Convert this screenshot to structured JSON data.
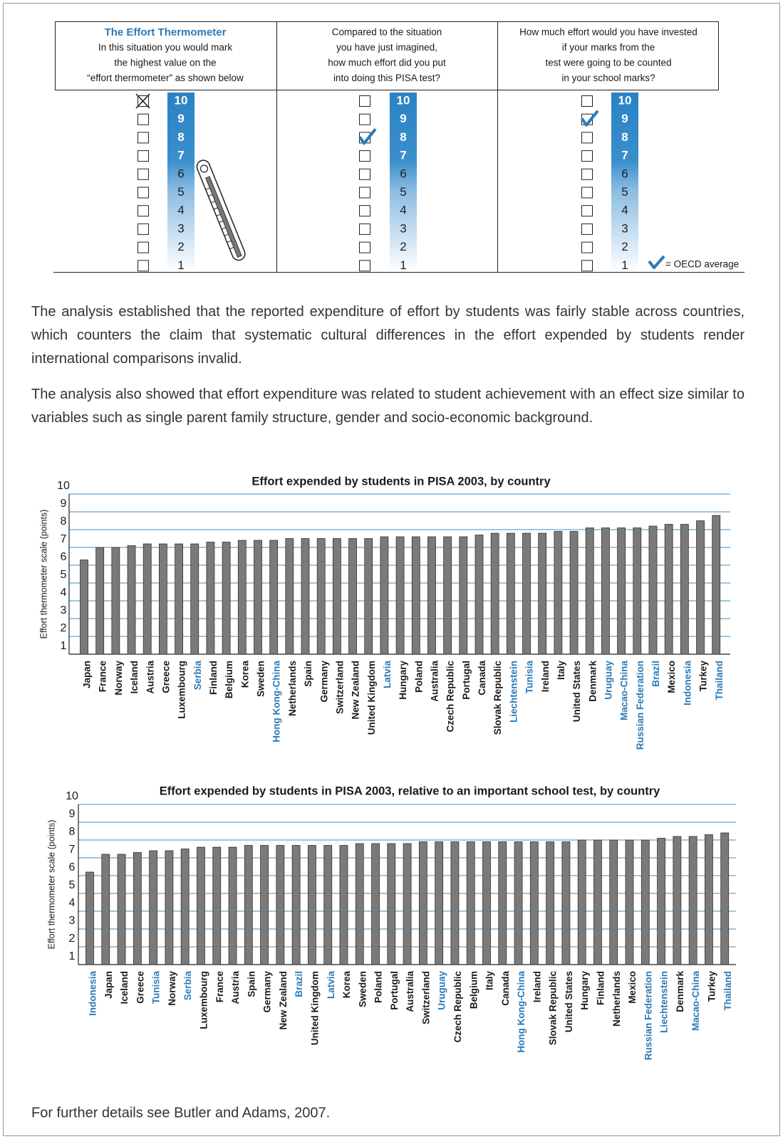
{
  "thermometer": {
    "columns": [
      {
        "title": "The Effort Thermometer",
        "lines": [
          "In this situation you would mark",
          "the highest value on the",
          "“effort thermometer” as shown below"
        ],
        "marked": 10,
        "mark": "cross"
      },
      {
        "lines": [
          "Compared to the situation",
          "you have just imagined,",
          "how much effort did you put",
          "into doing this PISA test?"
        ],
        "marked": 8,
        "mark": "check"
      },
      {
        "lines": [
          "How much effort would you have invested",
          "if your marks from the",
          "test were going to be counted",
          "in your school marks?"
        ],
        "marked": 9,
        "mark": "check"
      }
    ],
    "scale": [
      10,
      9,
      8,
      7,
      6,
      5,
      4,
      3,
      2,
      1
    ],
    "check_color": "#2a7ab9",
    "legend": "= OECD average"
  },
  "paragraphs": [
    "The analysis established that the reported expenditure of effort by students was fairly stable across countries, which counters the claim that systematic cultural differences in the effort expended by students render international comparisons invalid.",
    "The analysis also showed that effort expenditure was related to student achievement with an effect size similar to variables such as single parent family structure, gender and socio-economic background."
  ],
  "chart_data": [
    {
      "type": "bar",
      "title": "Effort expended by students in PISA 2003, by country",
      "y_label": "Effort thermometer scale (points)",
      "categories": [
        "Japan",
        "France",
        "Norway",
        "Iceland",
        "Austria",
        "Greece",
        "Luxembourg",
        "Serbia",
        "Finland",
        "Belgium",
        "Korea",
        "Sweden",
        "Hong Kong-China",
        "Netherlands",
        "Spain",
        "Germany",
        "Switzerland",
        "New Zealand",
        "United Kingdom",
        "Latvia",
        "Hungary",
        "Poland",
        "Australia",
        "Czech Republic",
        "Portugal",
        "Canada",
        "Slovak Republic",
        "Liechtenstein",
        "Tunisia",
        "Ireland",
        "Italy",
        "United States",
        "Denmark",
        "Uruguay",
        "Macao-China",
        "Russian Federation",
        "Brazil",
        "Mexico",
        "Indonesia",
        "Turkey",
        "Thailand"
      ],
      "values": [
        6.3,
        7.0,
        7.0,
        7.1,
        7.2,
        7.2,
        7.2,
        7.2,
        7.3,
        7.3,
        7.4,
        7.4,
        7.4,
        7.5,
        7.5,
        7.5,
        7.5,
        7.5,
        7.5,
        7.6,
        7.6,
        7.6,
        7.6,
        7.6,
        7.6,
        7.7,
        7.8,
        7.8,
        7.8,
        7.8,
        7.9,
        7.9,
        8.1,
        8.1,
        8.1,
        8.1,
        8.2,
        8.3,
        8.3,
        8.5,
        8.8
      ],
      "label_colors": [
        "#1a1a1a",
        "#1a1a1a",
        "#1a1a1a",
        "#1a1a1a",
        "#1a1a1a",
        "#1a1a1a",
        "#1a1a1a",
        "#2a7ab9",
        "#1a1a1a",
        "#1a1a1a",
        "#1a1a1a",
        "#1a1a1a",
        "#2a7ab9",
        "#1a1a1a",
        "#1a1a1a",
        "#1a1a1a",
        "#1a1a1a",
        "#1a1a1a",
        "#1a1a1a",
        "#2a7ab9",
        "#1a1a1a",
        "#1a1a1a",
        "#1a1a1a",
        "#1a1a1a",
        "#1a1a1a",
        "#1a1a1a",
        "#1a1a1a",
        "#2a7ab9",
        "#2a7ab9",
        "#1a1a1a",
        "#1a1a1a",
        "#1a1a1a",
        "#1a1a1a",
        "#2a7ab9",
        "#2a7ab9",
        "#2a7ab9",
        "#2a7ab9",
        "#1a1a1a",
        "#2a7ab9",
        "#1a1a1a",
        "#2a7ab9"
      ],
      "color": "#7a7a7a",
      "ylim": [
        1,
        10
      ],
      "yticks": [
        1,
        2,
        3,
        4,
        5,
        6,
        7,
        8,
        9,
        10
      ],
      "grid": true
    },
    {
      "type": "bar",
      "title": "Effort expended by students in PISA 2003, relative to an important school test, by country",
      "y_label": "Effort thermometer scale (points)",
      "categories": [
        "Indonesia",
        "Japan",
        "Iceland",
        "Greece",
        "Tunisia",
        "Norway",
        "Serbia",
        "Luxembourg",
        "France",
        "Austria",
        "Spain",
        "Germany",
        "New Zealand",
        "Brazil",
        "United Kingdom",
        "Latvia",
        "Korea",
        "Sweden",
        "Poland",
        "Portugal",
        "Australia",
        "Switzerland",
        "Uruguay",
        "Czech Republic",
        "Belgium",
        "Italy",
        "Canada",
        "Hong Kong-China",
        "Ireland",
        "Slovak Republic",
        "United States",
        "Hungary",
        "Finland",
        "Netherlands",
        "Mexico",
        "Russian Federation",
        "Liechtenstein",
        "Denmark",
        "Macao-China",
        "Turkey",
        "Thailand"
      ],
      "values": [
        6.2,
        7.2,
        7.2,
        7.3,
        7.4,
        7.4,
        7.5,
        7.6,
        7.6,
        7.6,
        7.7,
        7.7,
        7.7,
        7.7,
        7.7,
        7.7,
        7.7,
        7.8,
        7.8,
        7.8,
        7.8,
        7.9,
        7.9,
        7.9,
        7.9,
        7.9,
        7.9,
        7.9,
        7.9,
        7.9,
        7.9,
        8.0,
        8.0,
        8.0,
        8.0,
        8.0,
        8.1,
        8.2,
        8.2,
        8.3,
        8.4
      ],
      "label_colors": [
        "#2a7ab9",
        "#1a1a1a",
        "#1a1a1a",
        "#1a1a1a",
        "#2a7ab9",
        "#1a1a1a",
        "#2a7ab9",
        "#1a1a1a",
        "#1a1a1a",
        "#1a1a1a",
        "#1a1a1a",
        "#1a1a1a",
        "#1a1a1a",
        "#2a7ab9",
        "#1a1a1a",
        "#2a7ab9",
        "#1a1a1a",
        "#1a1a1a",
        "#1a1a1a",
        "#1a1a1a",
        "#1a1a1a",
        "#1a1a1a",
        "#2a7ab9",
        "#1a1a1a",
        "#1a1a1a",
        "#1a1a1a",
        "#1a1a1a",
        "#2a7ab9",
        "#1a1a1a",
        "#1a1a1a",
        "#1a1a1a",
        "#1a1a1a",
        "#1a1a1a",
        "#1a1a1a",
        "#1a1a1a",
        "#2a7ab9",
        "#2a7ab9",
        "#1a1a1a",
        "#2a7ab9",
        "#1a1a1a",
        "#2a7ab9"
      ],
      "color": "#7a7a7a",
      "ylim": [
        1,
        10
      ],
      "yticks": [
        1,
        2,
        3,
        4,
        5,
        6,
        7,
        8,
        9,
        10
      ],
      "grid": true
    }
  ],
  "footer": "For further details see Butler and Adams, 2007."
}
